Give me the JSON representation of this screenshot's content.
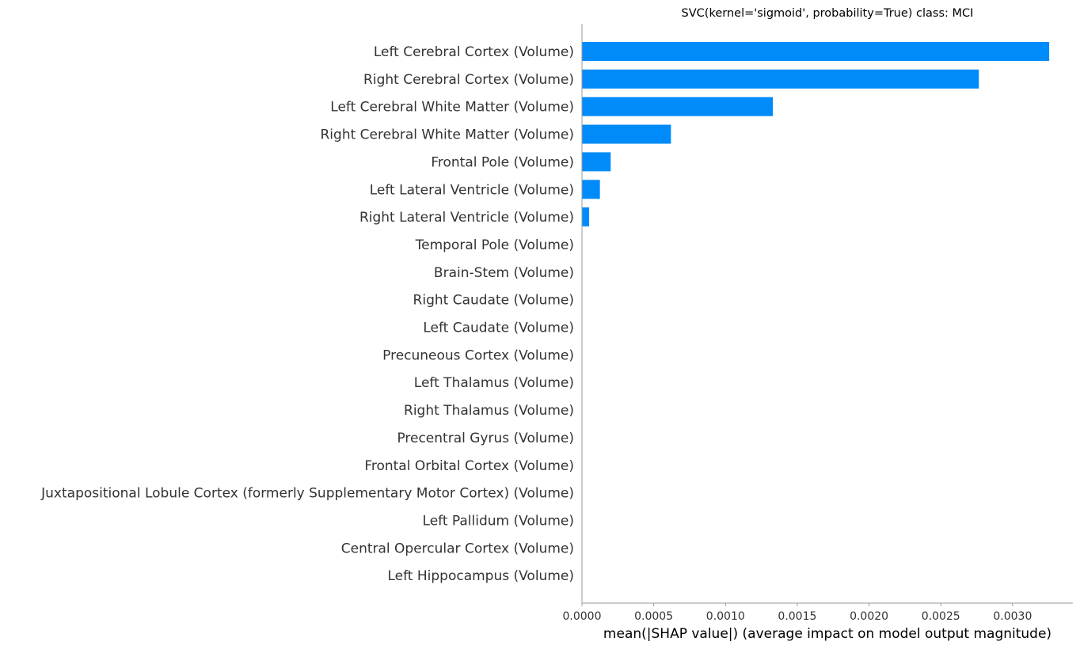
{
  "chart_data": {
    "type": "bar",
    "orientation": "horizontal",
    "title": "SVC(kernel='sigmoid', probability=True) class: MCI",
    "xlabel": "mean(|SHAP value|) (average impact on model output magnitude)",
    "ylabel": "",
    "xlim": [
      0,
      0.00342
    ],
    "xticks": [
      0.0,
      0.0005,
      0.001,
      0.0015,
      0.002,
      0.0025,
      0.003
    ],
    "xtick_labels": [
      "0.0000",
      "0.0005",
      "0.0010",
      "0.0015",
      "0.0020",
      "0.0025",
      "0.0030"
    ],
    "grid": false,
    "bar_color": "#008bfb",
    "categories": [
      "Left Cerebral Cortex  (Volume)",
      "Right Cerebral Cortex (Volume)",
      "Left Cerebral White Matter (Volume)",
      "Right Cerebral White Matter (Volume)",
      "Frontal Pole (Volume)",
      "Left Lateral Ventricle (Volume)",
      "Right Lateral Ventricle (Volume)",
      "Temporal Pole (Volume)",
      "Brain-Stem (Volume)",
      "Right Caudate (Volume)",
      "Left Caudate (Volume)",
      "Precuneous Cortex (Volume)",
      "Left Thalamus (Volume)",
      "Right Thalamus (Volume)",
      "Precentral Gyrus (Volume)",
      "Frontal Orbital Cortex (Volume)",
      "Juxtapositional Lobule Cortex (formerly Supplementary Motor Cortex) (Volume)",
      "Left Pallidum (Volume)",
      "Central Opercular Cortex (Volume)",
      "Left Hippocampus (Volume)"
    ],
    "values": [
      0.003255,
      0.002765,
      0.00133,
      0.00062,
      0.0002,
      0.000125,
      5e-05,
      0.0,
      0.0,
      0.0,
      0.0,
      0.0,
      0.0,
      0.0,
      0.0,
      0.0,
      0.0,
      0.0,
      0.0,
      0.0
    ]
  }
}
